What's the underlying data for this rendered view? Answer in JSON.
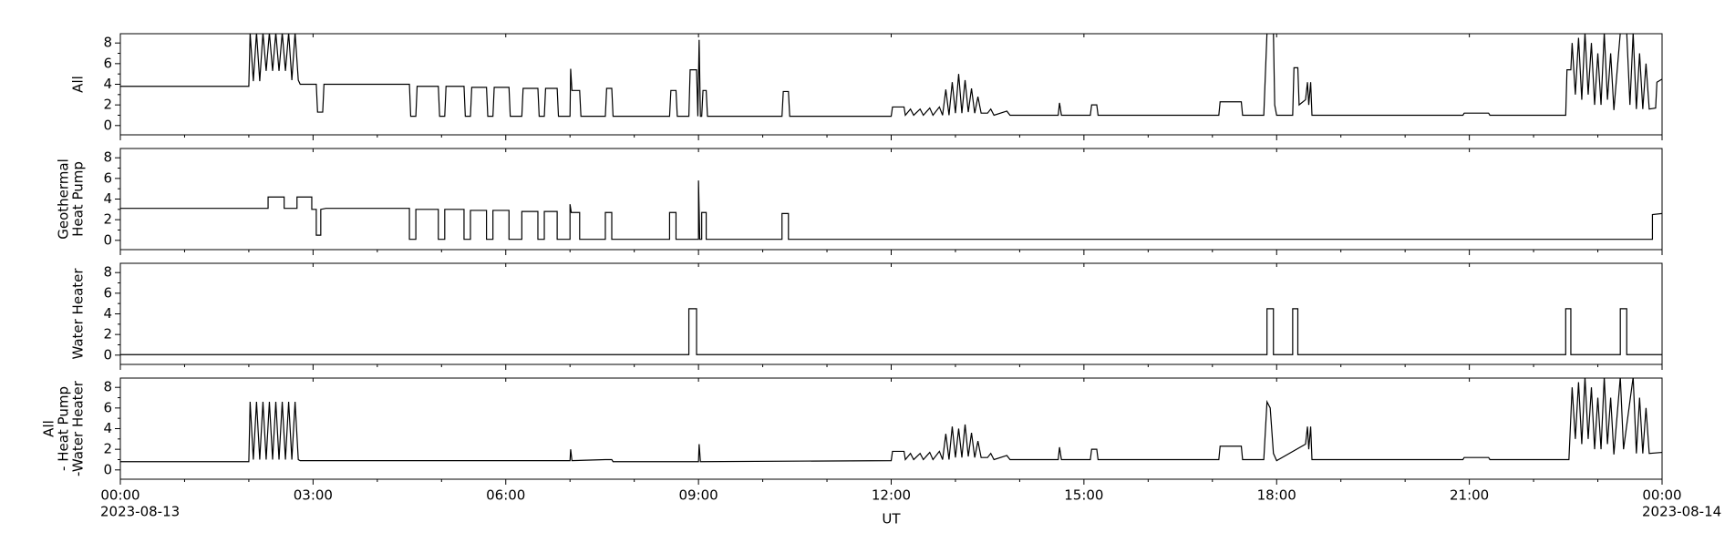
{
  "chart_data": [
    {
      "type": "line",
      "ylabel": [
        "All"
      ],
      "color": "#000000",
      "ylim": [
        -0.9,
        8.9
      ],
      "yticks": [
        0,
        2,
        4,
        6,
        8
      ],
      "minor_yticks": [
        1,
        3,
        5,
        7
      ],
      "xlim": [
        0,
        24
      ],
      "x": [
        0,
        2.0,
        2.02,
        2.07,
        2.12,
        2.17,
        2.22,
        2.27,
        2.32,
        2.37,
        2.42,
        2.47,
        2.52,
        2.57,
        2.62,
        2.67,
        2.72,
        2.77,
        2.8,
        3.05,
        3.07,
        3.15,
        3.17,
        4.5,
        4.52,
        4.6,
        4.62,
        4.95,
        4.97,
        5.05,
        5.07,
        5.35,
        5.37,
        5.45,
        5.47,
        5.7,
        5.72,
        5.8,
        5.82,
        6.05,
        6.07,
        6.25,
        6.27,
        6.5,
        6.52,
        6.6,
        6.62,
        6.8,
        6.82,
        7.0,
        7.01,
        7.03,
        7.15,
        7.17,
        7.55,
        7.57,
        7.65,
        7.67,
        8.55,
        8.57,
        8.65,
        8.67,
        8.85,
        8.87,
        8.97,
        8.99,
        9.01,
        9.03,
        9.05,
        9.07,
        9.12,
        9.14,
        10.3,
        10.32,
        10.4,
        10.42,
        12.0,
        12.02,
        12.2,
        12.22,
        12.3,
        12.35,
        12.45,
        12.5,
        12.6,
        12.65,
        12.75,
        12.8,
        12.85,
        12.9,
        12.95,
        13.0,
        13.05,
        13.1,
        13.15,
        13.2,
        13.25,
        13.3,
        13.35,
        13.4,
        13.5,
        13.55,
        13.6,
        13.8,
        13.85,
        14.6,
        14.62,
        14.65,
        15.1,
        15.12,
        15.2,
        15.22,
        17.1,
        17.12,
        17.45,
        17.47,
        17.8,
        17.85,
        17.95,
        17.97,
        18.0,
        18.25,
        18.27,
        18.33,
        18.35,
        18.45,
        18.48,
        18.5,
        18.53,
        18.55,
        20.9,
        20.92,
        21.3,
        21.32,
        22.5,
        22.52,
        22.58,
        22.6,
        22.65,
        22.7,
        22.75,
        22.8,
        22.85,
        22.9,
        22.95,
        23.0,
        23.05,
        23.1,
        23.15,
        23.2,
        23.25,
        23.35,
        23.45,
        23.5,
        23.55,
        23.6,
        23.65,
        23.7,
        23.75,
        23.8,
        23.9,
        23.92,
        24
      ],
      "values": [
        3.8,
        3.8,
        9,
        4.3,
        9,
        4.3,
        9,
        5.3,
        9,
        5.3,
        9,
        5.3,
        9,
        5.3,
        9,
        4.4,
        9,
        4.4,
        4.0,
        4.0,
        1.3,
        1.3,
        4.0,
        4.0,
        0.9,
        0.9,
        3.8,
        3.8,
        0.9,
        0.9,
        3.8,
        3.8,
        0.9,
        0.9,
        3.7,
        3.7,
        0.9,
        0.9,
        3.7,
        3.7,
        0.9,
        0.9,
        3.6,
        3.6,
        0.9,
        0.9,
        3.6,
        3.6,
        0.9,
        0.9,
        5.5,
        3.4,
        3.4,
        0.9,
        0.9,
        3.6,
        3.6,
        0.9,
        0.9,
        3.4,
        3.4,
        0.9,
        0.9,
        5.4,
        5.4,
        0.9,
        8.3,
        0.9,
        0.9,
        3.4,
        3.4,
        0.9,
        0.9,
        3.3,
        3.3,
        0.9,
        0.9,
        1.8,
        1.8,
        1.0,
        1.6,
        1.0,
        1.6,
        1.0,
        1.7,
        1.0,
        1.8,
        1.0,
        3.5,
        1.0,
        4.2,
        1.2,
        5.0,
        1.2,
        4.4,
        1.3,
        3.6,
        1.2,
        2.8,
        1.2,
        1.2,
        1.6,
        1.0,
        1.4,
        1.0,
        1.0,
        2.2,
        1.0,
        1.0,
        2.0,
        2.0,
        1.0,
        1.0,
        2.3,
        2.3,
        1.0,
        1.0,
        9,
        9,
        2.0,
        1.0,
        1.0,
        5.6,
        5.6,
        2.0,
        2.5,
        4.2,
        2.0,
        4.2,
        1.0,
        1.0,
        1.2,
        1.2,
        1.0,
        1.0,
        5.4,
        5.4,
        8.0,
        3.0,
        8.5,
        2.5,
        9,
        3.0,
        8.0,
        2.0,
        7.0,
        2.0,
        9,
        2.5,
        7.0,
        1.5,
        9,
        9,
        2.0,
        9,
        1.6,
        7.0,
        1.6,
        6.0,
        1.6,
        1.7,
        4.2,
        4.5
      ]
    },
    {
      "type": "line",
      "ylabel": [
        "Geothermal",
        "Heat Pump"
      ],
      "color": "#000000",
      "ylim": [
        -0.9,
        8.9
      ],
      "yticks": [
        0,
        2,
        4,
        6,
        8
      ],
      "minor_yticks": [
        1,
        3,
        5,
        7
      ],
      "xlim": [
        0,
        24
      ],
      "x": [
        0,
        2.3,
        2.3,
        2.55,
        2.55,
        2.75,
        2.75,
        2.98,
        2.98,
        3.05,
        3.05,
        3.12,
        3.12,
        3.2,
        4.5,
        4.5,
        4.6,
        4.6,
        4.95,
        4.95,
        5.05,
        5.05,
        5.35,
        5.35,
        5.45,
        5.45,
        5.7,
        5.7,
        5.8,
        5.8,
        6.05,
        6.05,
        6.25,
        6.25,
        6.5,
        6.5,
        6.6,
        6.6,
        6.8,
        6.8,
        7.0,
        7.0,
        7.02,
        7.15,
        7.15,
        7.55,
        7.55,
        7.65,
        7.65,
        8.55,
        8.55,
        8.65,
        8.65,
        9.0,
        9.0,
        9.02,
        9.05,
        9.05,
        9.12,
        9.12,
        10.3,
        10.3,
        10.4,
        10.4,
        23.85,
        23.85,
        24
      ],
      "values": [
        3.1,
        3.1,
        4.2,
        4.2,
        3.1,
        3.1,
        4.2,
        4.2,
        3.0,
        3.0,
        0.5,
        0.5,
        3.0,
        3.1,
        3.1,
        0.1,
        0.1,
        3.0,
        3.0,
        0.1,
        0.1,
        3.0,
        3.0,
        0.1,
        0.1,
        2.9,
        2.9,
        0.1,
        0.1,
        2.9,
        2.9,
        0.1,
        0.1,
        2.8,
        2.8,
        0.1,
        0.1,
        2.8,
        2.8,
        0.1,
        0.1,
        3.5,
        2.7,
        2.7,
        0.1,
        0.1,
        2.7,
        2.7,
        0.1,
        0.1,
        2.7,
        2.7,
        0.1,
        0.1,
        5.8,
        0.1,
        0.1,
        2.7,
        2.7,
        0.1,
        0.1,
        2.6,
        2.6,
        0.1,
        0.1,
        2.5,
        2.6
      ]
    },
    {
      "type": "line",
      "ylabel": [
        "Water Heater"
      ],
      "color": "#000000",
      "ylim": [
        -0.9,
        8.9
      ],
      "yticks": [
        0,
        2,
        4,
        6,
        8
      ],
      "minor_yticks": [
        1,
        3,
        5,
        7
      ],
      "xlim": [
        0,
        24
      ],
      "x": [
        0,
        8.85,
        8.85,
        8.97,
        8.97,
        17.85,
        17.85,
        17.95,
        17.95,
        18.25,
        18.25,
        18.33,
        18.33,
        22.5,
        22.5,
        22.58,
        22.58,
        23.35,
        23.35,
        23.45,
        23.45,
        24
      ],
      "values": [
        0.05,
        0.05,
        4.5,
        4.5,
        0.05,
        0.05,
        4.5,
        4.5,
        0.05,
        0.05,
        4.5,
        4.5,
        0.05,
        0.05,
        4.5,
        4.5,
        0.05,
        0.05,
        4.5,
        4.5,
        0.05,
        0.05
      ]
    },
    {
      "type": "line",
      "ylabel": [
        "All",
        "- Heat Pump",
        "-Water Heater"
      ],
      "color": "#000000",
      "ylim": [
        -0.9,
        8.9
      ],
      "yticks": [
        0,
        2,
        4,
        6,
        8
      ],
      "minor_yticks": [
        1,
        3,
        5,
        7
      ],
      "xlim": [
        0,
        24
      ],
      "xticks": [
        {
          "value": 0,
          "label": "00:00"
        },
        {
          "value": 3,
          "label": "03:00"
        },
        {
          "value": 6,
          "label": "06:00"
        },
        {
          "value": 9,
          "label": "09:00"
        },
        {
          "value": 12,
          "label": "12:00"
        },
        {
          "value": 15,
          "label": "15:00"
        },
        {
          "value": 18,
          "label": "18:00"
        },
        {
          "value": 21,
          "label": "21:00"
        },
        {
          "value": 24,
          "label": "00:00"
        }
      ],
      "minor_xticks": [
        1,
        2,
        4,
        5,
        7,
        8,
        10,
        11,
        13,
        14,
        16,
        17,
        19,
        20,
        22,
        23
      ],
      "xtick_dates": [
        {
          "value": 0,
          "label": "2023-08-13"
        },
        {
          "value": 24,
          "label": "2023-08-14"
        }
      ],
      "xlabel": "UT",
      "x": [
        0,
        2.0,
        2.02,
        2.07,
        2.12,
        2.17,
        2.22,
        2.27,
        2.32,
        2.37,
        2.42,
        2.47,
        2.52,
        2.57,
        2.62,
        2.67,
        2.72,
        2.77,
        2.8,
        7.0,
        7.01,
        7.03,
        7.55,
        7.65,
        7.67,
        9.0,
        9.01,
        9.03,
        12.0,
        12.02,
        12.2,
        12.22,
        12.3,
        12.35,
        12.45,
        12.5,
        12.6,
        12.65,
        12.75,
        12.8,
        12.85,
        12.9,
        12.95,
        13.0,
        13.05,
        13.1,
        13.15,
        13.2,
        13.25,
        13.3,
        13.35,
        13.4,
        13.5,
        13.55,
        13.6,
        13.8,
        13.85,
        14.6,
        14.62,
        14.65,
        15.1,
        15.12,
        15.2,
        15.22,
        17.1,
        17.12,
        17.45,
        17.47,
        17.8,
        17.85,
        17.9,
        17.95,
        18.0,
        18.45,
        18.48,
        18.5,
        18.53,
        18.55,
        20.9,
        20.92,
        21.3,
        21.32,
        22.55,
        22.6,
        22.65,
        22.7,
        22.75,
        22.8,
        22.85,
        22.9,
        22.95,
        23.0,
        23.05,
        23.1,
        23.15,
        23.2,
        23.25,
        23.35,
        23.4,
        23.55,
        23.6,
        23.65,
        23.7,
        23.75,
        23.8,
        24
      ],
      "values": [
        0.8,
        0.8,
        6.6,
        1.0,
        6.6,
        1.0,
        6.6,
        1.0,
        6.6,
        1.0,
        6.6,
        1.0,
        6.6,
        1.0,
        6.6,
        1.0,
        6.6,
        1.0,
        0.9,
        0.9,
        2.0,
        0.9,
        1.0,
        1.0,
        0.8,
        0.8,
        2.5,
        0.8,
        0.9,
        1.8,
        1.8,
        1.0,
        1.6,
        1.0,
        1.6,
        1.0,
        1.7,
        1.0,
        1.8,
        1.0,
        3.5,
        1.0,
        4.2,
        1.2,
        4.0,
        1.2,
        4.4,
        1.3,
        3.6,
        1.2,
        2.8,
        1.2,
        1.2,
        1.6,
        1.0,
        1.4,
        1.0,
        1.0,
        2.2,
        1.0,
        1.0,
        2.0,
        2.0,
        1.0,
        1.0,
        2.3,
        2.3,
        1.0,
        1.0,
        6.6,
        6.0,
        1.6,
        0.9,
        2.5,
        4.2,
        2.0,
        4.2,
        1.0,
        1.0,
        1.2,
        1.2,
        1.0,
        1.0,
        8.0,
        3.0,
        8.5,
        2.5,
        9,
        3.0,
        8.0,
        2.0,
        7.0,
        2.0,
        9,
        2.5,
        7.0,
        1.5,
        9,
        2.0,
        9,
        1.6,
        7.0,
        1.6,
        6.0,
        1.6,
        1.7
      ]
    }
  ]
}
